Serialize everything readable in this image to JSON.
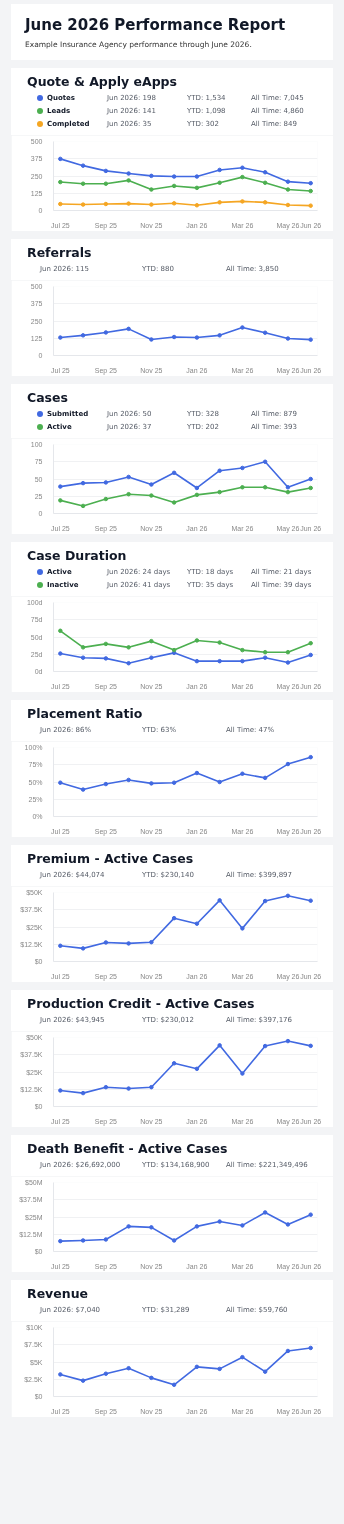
{
  "chart_data": [
    {
      "type": "other",
      "title": "June 2026 Performance Report",
      "subtitle": "Example Insurance Agency performance through June 2026."
    },
    {
      "type": "line",
      "title": "Quote & Apply eApps",
      "categories": [
        "Jul 25",
        null,
        "Sep 25",
        null,
        "Nov 25",
        null,
        "Jan 26",
        null,
        "Mar 26",
        null,
        "May 26",
        "Jun 26"
      ],
      "ylim": [
        0,
        500
      ],
      "yticks": [
        0,
        125,
        250,
        375,
        500
      ],
      "grid": "y",
      "marker": "circle",
      "line_style": "solid",
      "legend": "top",
      "series": [
        {
          "name": "Quotes",
          "color": "#4169e1",
          "values": [
            374,
            325,
            287,
            268,
            251,
            246,
            246,
            294,
            310,
            277,
            209,
            198
          ]
        },
        {
          "name": "Leads",
          "color": "#4caf50",
          "values": [
            206,
            194,
            194,
            218,
            152,
            178,
            164,
            201,
            242,
            201,
            152,
            141
          ]
        },
        {
          "name": "Completed",
          "color": "#f5a623",
          "values": [
            47,
            43,
            47,
            50,
            43,
            52,
            38,
            59,
            66,
            59,
            40,
            35
          ]
        }
      ],
      "annotations": [
        "Jun 2026: 198",
        "YTD: 1,534",
        "All Time: 7,045",
        "Jun 2026: 141",
        "YTD: 1,098",
        "All Time: 4,860",
        "Jun 2026: 35",
        "YTD: 302",
        "All Time: 849"
      ]
    },
    {
      "type": "line",
      "title": "Referrals",
      "categories": [
        "Jul 25",
        null,
        "Sep 25",
        null,
        "Nov 25",
        null,
        "Jan 26",
        null,
        "Mar 26",
        null,
        "May 26",
        "Jun 26"
      ],
      "ylim": [
        0,
        500
      ],
      "yticks": [
        0,
        125,
        250,
        375,
        500
      ],
      "grid": "y",
      "marker": "circle",
      "line_style": "solid",
      "series": [
        {
          "color": "#4169e1",
          "values": [
            130,
            146,
            167,
            193,
            116,
            134,
            130,
            146,
            203,
            165,
            123,
            115
          ]
        }
      ],
      "annotations": [
        "Jun 2026: 115",
        "YTD: 880",
        "All Time: 3,850"
      ]
    },
    {
      "type": "line",
      "title": "Cases",
      "categories": [
        "Jul 25",
        null,
        "Sep 25",
        null,
        "Nov 25",
        null,
        "Jan 26",
        null,
        "Mar 26",
        null,
        "May 26",
        "Jun 26"
      ],
      "ylim": [
        0,
        100
      ],
      "yticks": [
        0,
        25,
        50,
        75,
        100
      ],
      "grid": "y",
      "marker": "circle",
      "line_style": "solid",
      "legend": "top",
      "series": [
        {
          "name": "Submitted",
          "color": "#4169e1",
          "values": [
            39,
            44,
            45,
            53,
            42,
            59,
            37,
            62,
            66,
            75,
            38,
            50
          ]
        },
        {
          "name": "Active",
          "color": "#4caf50",
          "values": [
            19,
            11,
            21,
            28,
            26,
            16,
            27,
            31,
            38,
            38,
            31,
            37
          ]
        }
      ],
      "annotations": [
        "Jun 2026: 50",
        "YTD: 328",
        "All Time: 879",
        "Jun 2026: 37",
        "YTD: 202",
        "All Time: 393"
      ]
    },
    {
      "type": "line",
      "title": "Case Duration",
      "categories": [
        "Jul 25",
        null,
        "Sep 25",
        null,
        "Nov 25",
        null,
        "Jan 26",
        null,
        "Mar 26",
        null,
        "May 26",
        "Jun 26"
      ],
      "ylim": [
        0,
        100
      ],
      "yticks": [
        {
          "value": 0,
          "label": "0d"
        },
        {
          "value": 25,
          "label": "25d"
        },
        {
          "value": 50,
          "label": "50d"
        },
        {
          "value": 75,
          "label": "75d"
        },
        {
          "value": 100,
          "label": "100d"
        }
      ],
      "grid": "y",
      "marker": "circle",
      "line_style": "solid",
      "legend": "top",
      "series": [
        {
          "name": "Active",
          "color": "#4169e1",
          "values": [
            26,
            20,
            19,
            12,
            20,
            27,
            15,
            15,
            15,
            20,
            13,
            24
          ]
        },
        {
          "name": "Inactive",
          "color": "#4caf50",
          "values": [
            59,
            35,
            40,
            35,
            44,
            31,
            45,
            42,
            31,
            28,
            28,
            41
          ]
        }
      ],
      "annotations": [
        "Jun 2026: 24 days",
        "YTD: 18 days",
        "All Time: 21 days",
        "Jun 2026: 41 days",
        "YTD: 35 days",
        "All Time: 39 days"
      ]
    },
    {
      "type": "line",
      "title": "Placement Ratio",
      "categories": [
        "Jul 25",
        null,
        "Sep 25",
        null,
        "Nov 25",
        null,
        "Jan 26",
        null,
        "Mar 26",
        null,
        "May 26",
        "Jun 26"
      ],
      "ylim": [
        0,
        100
      ],
      "yticks": [
        {
          "value": 0,
          "label": "0%"
        },
        {
          "value": 25,
          "label": "25%"
        },
        {
          "value": 50,
          "label": "50%"
        },
        {
          "value": 75,
          "label": "75%"
        },
        {
          "value": 100,
          "label": "100%"
        }
      ],
      "grid": "y",
      "marker": "circle",
      "line_style": "solid",
      "series": [
        {
          "color": "#4169e1",
          "values": [
            49,
            39,
            47,
            53,
            48,
            49,
            63,
            50,
            62,
            56,
            76,
            86
          ]
        }
      ],
      "annotations": [
        "Jun 2026: 86%",
        "YTD: 63%",
        "All Time: 47%"
      ]
    },
    {
      "type": "line",
      "title": "Premium - Active Cases",
      "categories": [
        "Jul 25",
        null,
        "Sep 25",
        null,
        "Nov 25",
        null,
        "Jan 26",
        null,
        "Mar 26",
        null,
        "May 26",
        "Jun 26"
      ],
      "ylim": [
        0,
        50000
      ],
      "yticks": [
        {
          "value": 0,
          "label": "$0"
        },
        {
          "value": 12500,
          "label": "$12.5K"
        },
        {
          "value": 25000,
          "label": "$25K"
        },
        {
          "value": 37500,
          "label": "$37.5K"
        },
        {
          "value": 50000,
          "label": "$50K"
        }
      ],
      "grid": "y",
      "marker": "circle",
      "line_style": "solid",
      "series": [
        {
          "color": "#4169e1",
          "values": [
            11400,
            9500,
            13800,
            13100,
            14000,
            31400,
            27400,
            44300,
            24000,
            43800,
            47600,
            44074
          ]
        }
      ],
      "annotations": [
        "Jun 2026: $44,074",
        "YTD: $230,140",
        "All Time: $399,897"
      ]
    },
    {
      "type": "line",
      "title": "Production Credit - Active Cases",
      "categories": [
        "Jul 25",
        null,
        "Sep 25",
        null,
        "Nov 25",
        null,
        "Jan 26",
        null,
        "Mar 26",
        null,
        "May 26",
        "Jun 26"
      ],
      "ylim": [
        0,
        50000
      ],
      "yticks": [
        {
          "value": 0,
          "label": "$0"
        },
        {
          "value": 12500,
          "label": "$12.5K"
        },
        {
          "value": 25000,
          "label": "$25K"
        },
        {
          "value": 37500,
          "label": "$37.5K"
        },
        {
          "value": 50000,
          "label": "$50K"
        }
      ],
      "grid": "y",
      "marker": "circle",
      "line_style": "solid",
      "series": [
        {
          "color": "#4169e1",
          "values": [
            11600,
            9700,
            14000,
            13000,
            14000,
            31300,
            27300,
            44300,
            23900,
            43800,
            47400,
            43945
          ]
        }
      ],
      "annotations": [
        "Jun 2026: $43,945",
        "YTD: $230,012",
        "All Time: $397,176"
      ]
    },
    {
      "type": "line",
      "title": "Death Benefit - Active Cases",
      "categories": [
        "Jul 25",
        null,
        "Sep 25",
        null,
        "Nov 25",
        null,
        "Jan 26",
        null,
        "Mar 26",
        null,
        "May 26",
        "Jun 26"
      ],
      "ylim": [
        0,
        50000000
      ],
      "yticks": [
        {
          "value": 0,
          "label": "$0"
        },
        {
          "value": 12500000,
          "label": "$12.5M"
        },
        {
          "value": 25000000,
          "label": "$25M"
        },
        {
          "value": 37500000,
          "label": "$37.5M"
        },
        {
          "value": 50000000,
          "label": "$50M"
        }
      ],
      "grid": "y",
      "marker": "circle",
      "line_style": "solid",
      "series": [
        {
          "color": "#4169e1",
          "values": [
            7500000,
            8000000,
            8700000,
            18200000,
            17500000,
            8000000,
            18200000,
            21700000,
            18900000,
            28300000,
            19600000,
            26692000
          ]
        }
      ],
      "annotations": [
        "Jun 2026: $26,692,000",
        "YTD: $134,168,900",
        "All Time: $221,349,496"
      ]
    },
    {
      "type": "line",
      "title": "Revenue",
      "categories": [
        "Jul 25",
        null,
        "Sep 25",
        null,
        "Nov 25",
        null,
        "Jan 26",
        null,
        "Mar 26",
        null,
        "May 26",
        "Jun 26"
      ],
      "ylim": [
        0,
        10000
      ],
      "yticks": [
        {
          "value": 0,
          "label": "$0"
        },
        {
          "value": 2500,
          "label": "$2.5K"
        },
        {
          "value": 5000,
          "label": "$5K"
        },
        {
          "value": 7500,
          "label": "$7.5K"
        },
        {
          "value": 10000,
          "label": "$10K"
        }
      ],
      "grid": "y",
      "marker": "circle",
      "line_style": "solid",
      "series": [
        {
          "color": "#4169e1",
          "values": [
            3200,
            2300,
            3300,
            4100,
            2700,
            1700,
            4300,
            4000,
            5700,
            3600,
            6600,
            7040
          ]
        }
      ],
      "annotations": [
        "Jun 2026: $7,040",
        "YTD: $31,289",
        "All Time: $59,760"
      ]
    }
  ]
}
